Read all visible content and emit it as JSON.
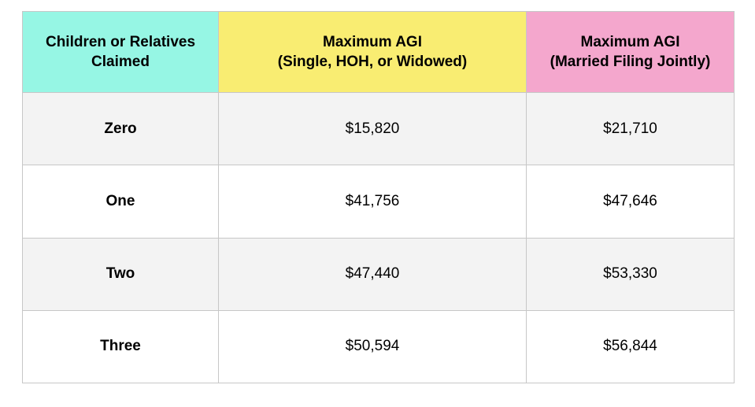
{
  "chart_data": {
    "type": "table",
    "title": "",
    "columns": [
      "Children or Relatives Claimed",
      "Maximum AGI (Single, HOH, or Widowed)",
      "Maximum AGI (Married Filing Jointly)"
    ],
    "rows": [
      [
        "Zero",
        "$15,820",
        "$21,710"
      ],
      [
        "One",
        "$41,756",
        "$47,646"
      ],
      [
        "Two",
        "$47,440",
        "$53,330"
      ],
      [
        "Three",
        "$50,594",
        "$56,844"
      ]
    ],
    "header_colors": [
      "#96f6e4",
      "#f9ed72",
      "#f4a7cd"
    ],
    "row_stripe_colors": [
      "#f3f3f3",
      "#ffffff"
    ],
    "grid": true,
    "layout": "header row colored cyan/yellow/pink; data rows alternate light-gray and white; all cells center-aligned"
  },
  "table": {
    "headers": [
      {
        "line1": "Children or Relatives",
        "line2": "Claimed"
      },
      {
        "line1": "Maximum AGI",
        "line2": "(Single, HOH, or Widowed)"
      },
      {
        "line1": "Maximum AGI",
        "line2": "(Married Filing Jointly)"
      }
    ],
    "rows": [
      {
        "claimed": "Zero",
        "single_agi": "$15,820",
        "married_agi": "$21,710"
      },
      {
        "claimed": "One",
        "single_agi": "$41,756",
        "married_agi": "$47,646"
      },
      {
        "claimed": "Two",
        "single_agi": "$47,440",
        "married_agi": "$53,330"
      },
      {
        "claimed": "Three",
        "single_agi": "$50,594",
        "married_agi": "$56,844"
      }
    ]
  },
  "colors": {
    "header_claimed_bg": "#96f6e4",
    "header_single_bg": "#f9ed72",
    "header_married_bg": "#f4a7cd",
    "row_alt_bg": "#f3f3f3",
    "row_bg": "#ffffff",
    "border": "#c7c7c7",
    "text": "#000000",
    "page_bg": "#ffffff"
  }
}
